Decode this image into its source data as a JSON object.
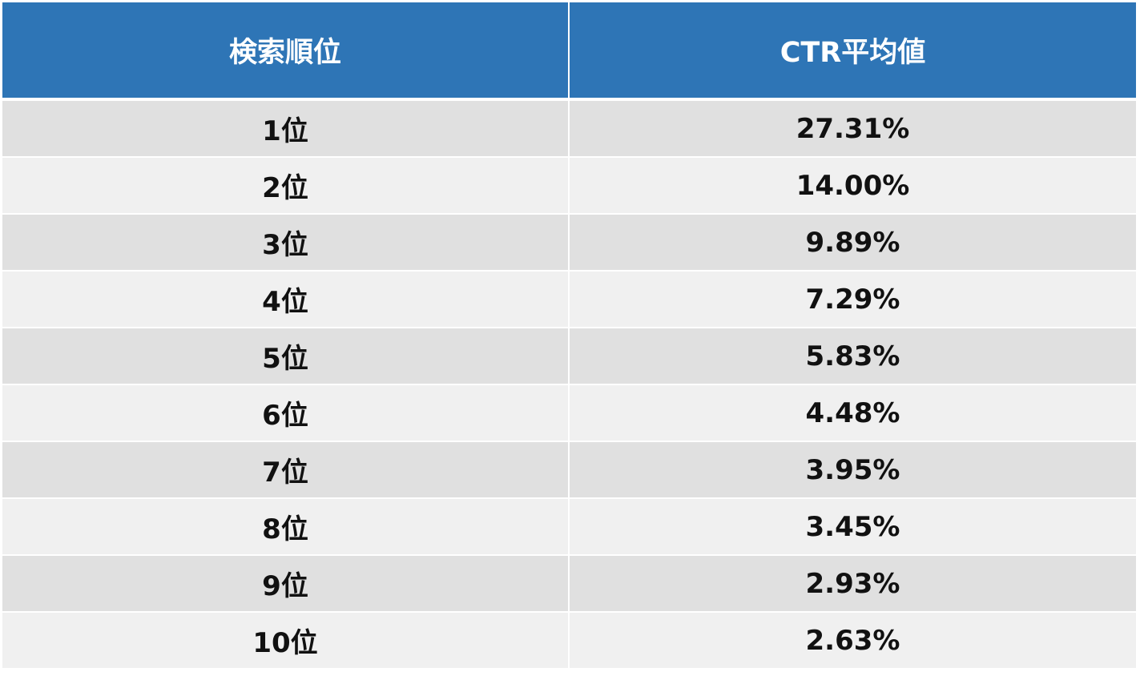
{
  "colors": {
    "header_bg": "#2e75b6",
    "row_odd_bg": "#e0e0e0",
    "row_even_bg": "#f0f0f0"
  },
  "table": {
    "headers": [
      "検索順位",
      "CTR平均値"
    ],
    "rows": [
      [
        "1位",
        "27.31%"
      ],
      [
        "2位",
        "14.00%"
      ],
      [
        "3位",
        "9.89%"
      ],
      [
        "4位",
        "7.29%"
      ],
      [
        "5位",
        "5.83%"
      ],
      [
        "6位",
        "4.48%"
      ],
      [
        "7位",
        "3.95%"
      ],
      [
        "8位",
        "3.45%"
      ],
      [
        "9位",
        "2.93%"
      ],
      [
        "10位",
        "2.63%"
      ]
    ]
  },
  "chart_data": {
    "type": "table",
    "columns": [
      "検索順位",
      "CTR平均値"
    ],
    "rows": [
      [
        "1位",
        "27.31%"
      ],
      [
        "2位",
        "14.00%"
      ],
      [
        "3位",
        "9.89%"
      ],
      [
        "4位",
        "7.29%"
      ],
      [
        "5位",
        "5.83%"
      ],
      [
        "6位",
        "4.48%"
      ],
      [
        "7位",
        "3.95%"
      ],
      [
        "8位",
        "3.45%"
      ],
      [
        "9位",
        "2.93%"
      ],
      [
        "10位",
        "2.63%"
      ]
    ]
  }
}
